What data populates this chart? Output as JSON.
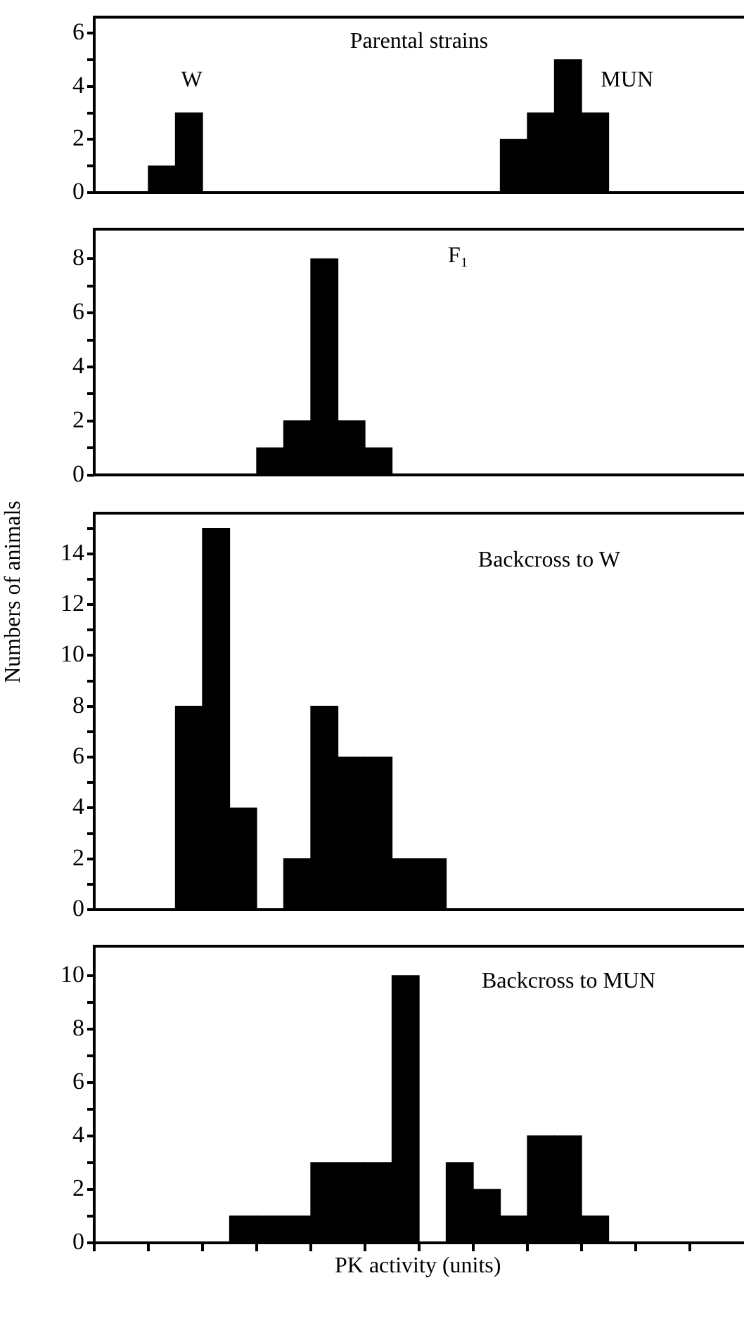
{
  "chart_data": [
    {
      "type": "bar",
      "title": "Parental strains",
      "annotations": [
        "W",
        "MUN"
      ],
      "categories": [
        null,
        null,
        null,
        null,
        null,
        null,
        null,
        null,
        null,
        null,
        null,
        null,
        null,
        null,
        null,
        null,
        null,
        null,
        null,
        null,
        null,
        null,
        null,
        null
      ],
      "values": [
        0,
        0,
        1,
        3,
        0,
        0,
        0,
        0,
        0,
        0,
        0,
        0,
        0,
        0,
        0,
        2,
        3,
        5,
        3,
        0,
        0,
        0,
        0,
        0
      ],
      "color": "#000000",
      "ylim": [
        0,
        6.6
      ],
      "yticks": [
        0,
        {
          "value": 1,
          "label": null
        },
        2,
        {
          "value": 3,
          "label": null
        },
        4,
        {
          "value": 5,
          "label": null
        },
        6
      ],
      "grid": false,
      "legend": false,
      "tick_labels": "y"
    },
    {
      "type": "bar",
      "title": "F₁",
      "categories": [
        null,
        null,
        null,
        null,
        null,
        null,
        null,
        null,
        null,
        null,
        null,
        null,
        null,
        null,
        null,
        null,
        null,
        null,
        null,
        null,
        null,
        null,
        null,
        null
      ],
      "values": [
        0,
        0,
        0,
        0,
        0,
        0,
        1,
        2,
        8,
        2,
        1,
        0,
        0,
        0,
        0,
        0,
        0,
        0,
        0,
        0,
        0,
        0,
        0,
        0
      ],
      "color": "#000000",
      "ylim": [
        0,
        9.1
      ],
      "yticks": [
        0,
        {
          "value": 1,
          "label": null
        },
        2,
        {
          "value": 3,
          "label": null
        },
        4,
        {
          "value": 5,
          "label": null
        },
        6,
        {
          "value": 7,
          "label": null
        },
        8
      ],
      "grid": false,
      "legend": false,
      "tick_labels": "y"
    },
    {
      "type": "bar",
      "title": "Backcross to W",
      "ylabel": "Numbers of animals",
      "categories": [
        null,
        null,
        null,
        null,
        null,
        null,
        null,
        null,
        null,
        null,
        null,
        null,
        null,
        null,
        null,
        null,
        null,
        null,
        null,
        null,
        null,
        null,
        null,
        null
      ],
      "values": [
        0,
        0,
        0,
        8,
        15,
        4,
        0,
        2,
        8,
        6,
        6,
        2,
        2,
        0,
        0,
        0,
        0,
        0,
        0,
        0,
        0,
        0,
        0,
        0
      ],
      "color": "#000000",
      "ylim": [
        0,
        15.6
      ],
      "yticks": [
        0,
        {
          "value": 1,
          "label": null
        },
        2,
        {
          "value": 3,
          "label": null
        },
        4,
        {
          "value": 5,
          "label": null
        },
        6,
        {
          "value": 7,
          "label": null
        },
        8,
        {
          "value": 9,
          "label": null
        },
        10,
        {
          "value": 11,
          "label": null
        },
        12,
        {
          "value": 13,
          "label": null
        },
        14,
        {
          "value": 15,
          "label": null
        }
      ],
      "grid": false,
      "legend": false,
      "tick_labels": "y"
    },
    {
      "type": "bar",
      "title": "Backcross to MUN",
      "xlabel": "PK activity (units)",
      "categories": [
        null,
        null,
        null,
        null,
        null,
        null,
        null,
        null,
        null,
        null,
        null,
        null,
        null,
        null,
        null,
        null,
        null,
        null,
        null,
        null,
        null,
        null,
        null,
        null
      ],
      "values": [
        0,
        0,
        0,
        0,
        0,
        1,
        1,
        1,
        3,
        3,
        3,
        10,
        0,
        3,
        2,
        1,
        4,
        4,
        1,
        0,
        0,
        0,
        0,
        0
      ],
      "color": "#000000",
      "ylim": [
        0,
        11.1
      ],
      "yticks": [
        0,
        {
          "value": 1,
          "label": null
        },
        2,
        {
          "value": 3,
          "label": null
        },
        4,
        {
          "value": 5,
          "label": null
        },
        6,
        {
          "value": 7,
          "label": null
        },
        8,
        {
          "value": 9,
          "label": null
        },
        10
      ],
      "grid": false,
      "legend": false,
      "tick_labels": "y"
    }
  ]
}
